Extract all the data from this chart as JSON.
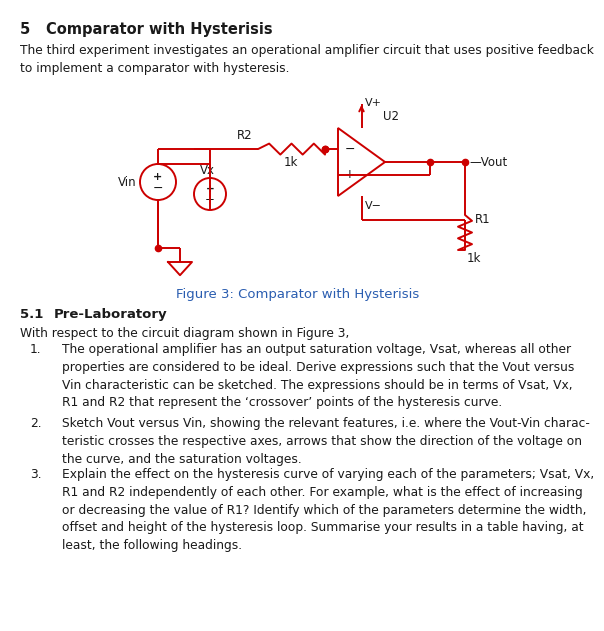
{
  "title_num": "5",
  "title_text": "Comparator with Hysterisis",
  "intro": "The third experiment investigates an operational amplifier circuit that uses positive feedback\nto implement a comparator with hysteresis.",
  "figure_caption": "Figure 3: Comparator with Hysterisis",
  "section_51_num": "5.1",
  "section_51_text": "Pre-Laboratory",
  "with_respect": "With respect to the circuit diagram shown in Figure 3,",
  "item1_num": "1.",
  "item1": "The operational amplifier has an output saturation voltage, Vsat, whereas all other\nproperties are considered to be ideal. Derive expressions such that the Vout versus\nVin characteristic can be sketched. The expressions should be in terms of Vsat, Vx,\nR1 and R2 that represent the ‘crossover’ points of the hysteresis curve.",
  "item2_num": "2.",
  "item2": "Sketch Vout versus Vin, showing the relevant features, i.e. where the Vout-Vin charac-\nteristic crosses the respective axes, arrows that show the direction of the voltage on\nthe curve, and the saturation voltages.",
  "item3_num": "3.",
  "item3": "Explain the effect on the hysteresis curve of varying each of the parameters; Vsat, Vx,\nR1 and R2 independently of each other. For example, what is the effect of increasing\nor decreasing the value of R1? Identify which of the parameters determine the width,\noffset and height of the hysteresis loop. Summarise your results in a table having, at\nleast, the following headings.",
  "cc": "#cc0000",
  "tc": "#1a1a1a",
  "cap_color": "#2a5db0",
  "bg": "#ffffff"
}
